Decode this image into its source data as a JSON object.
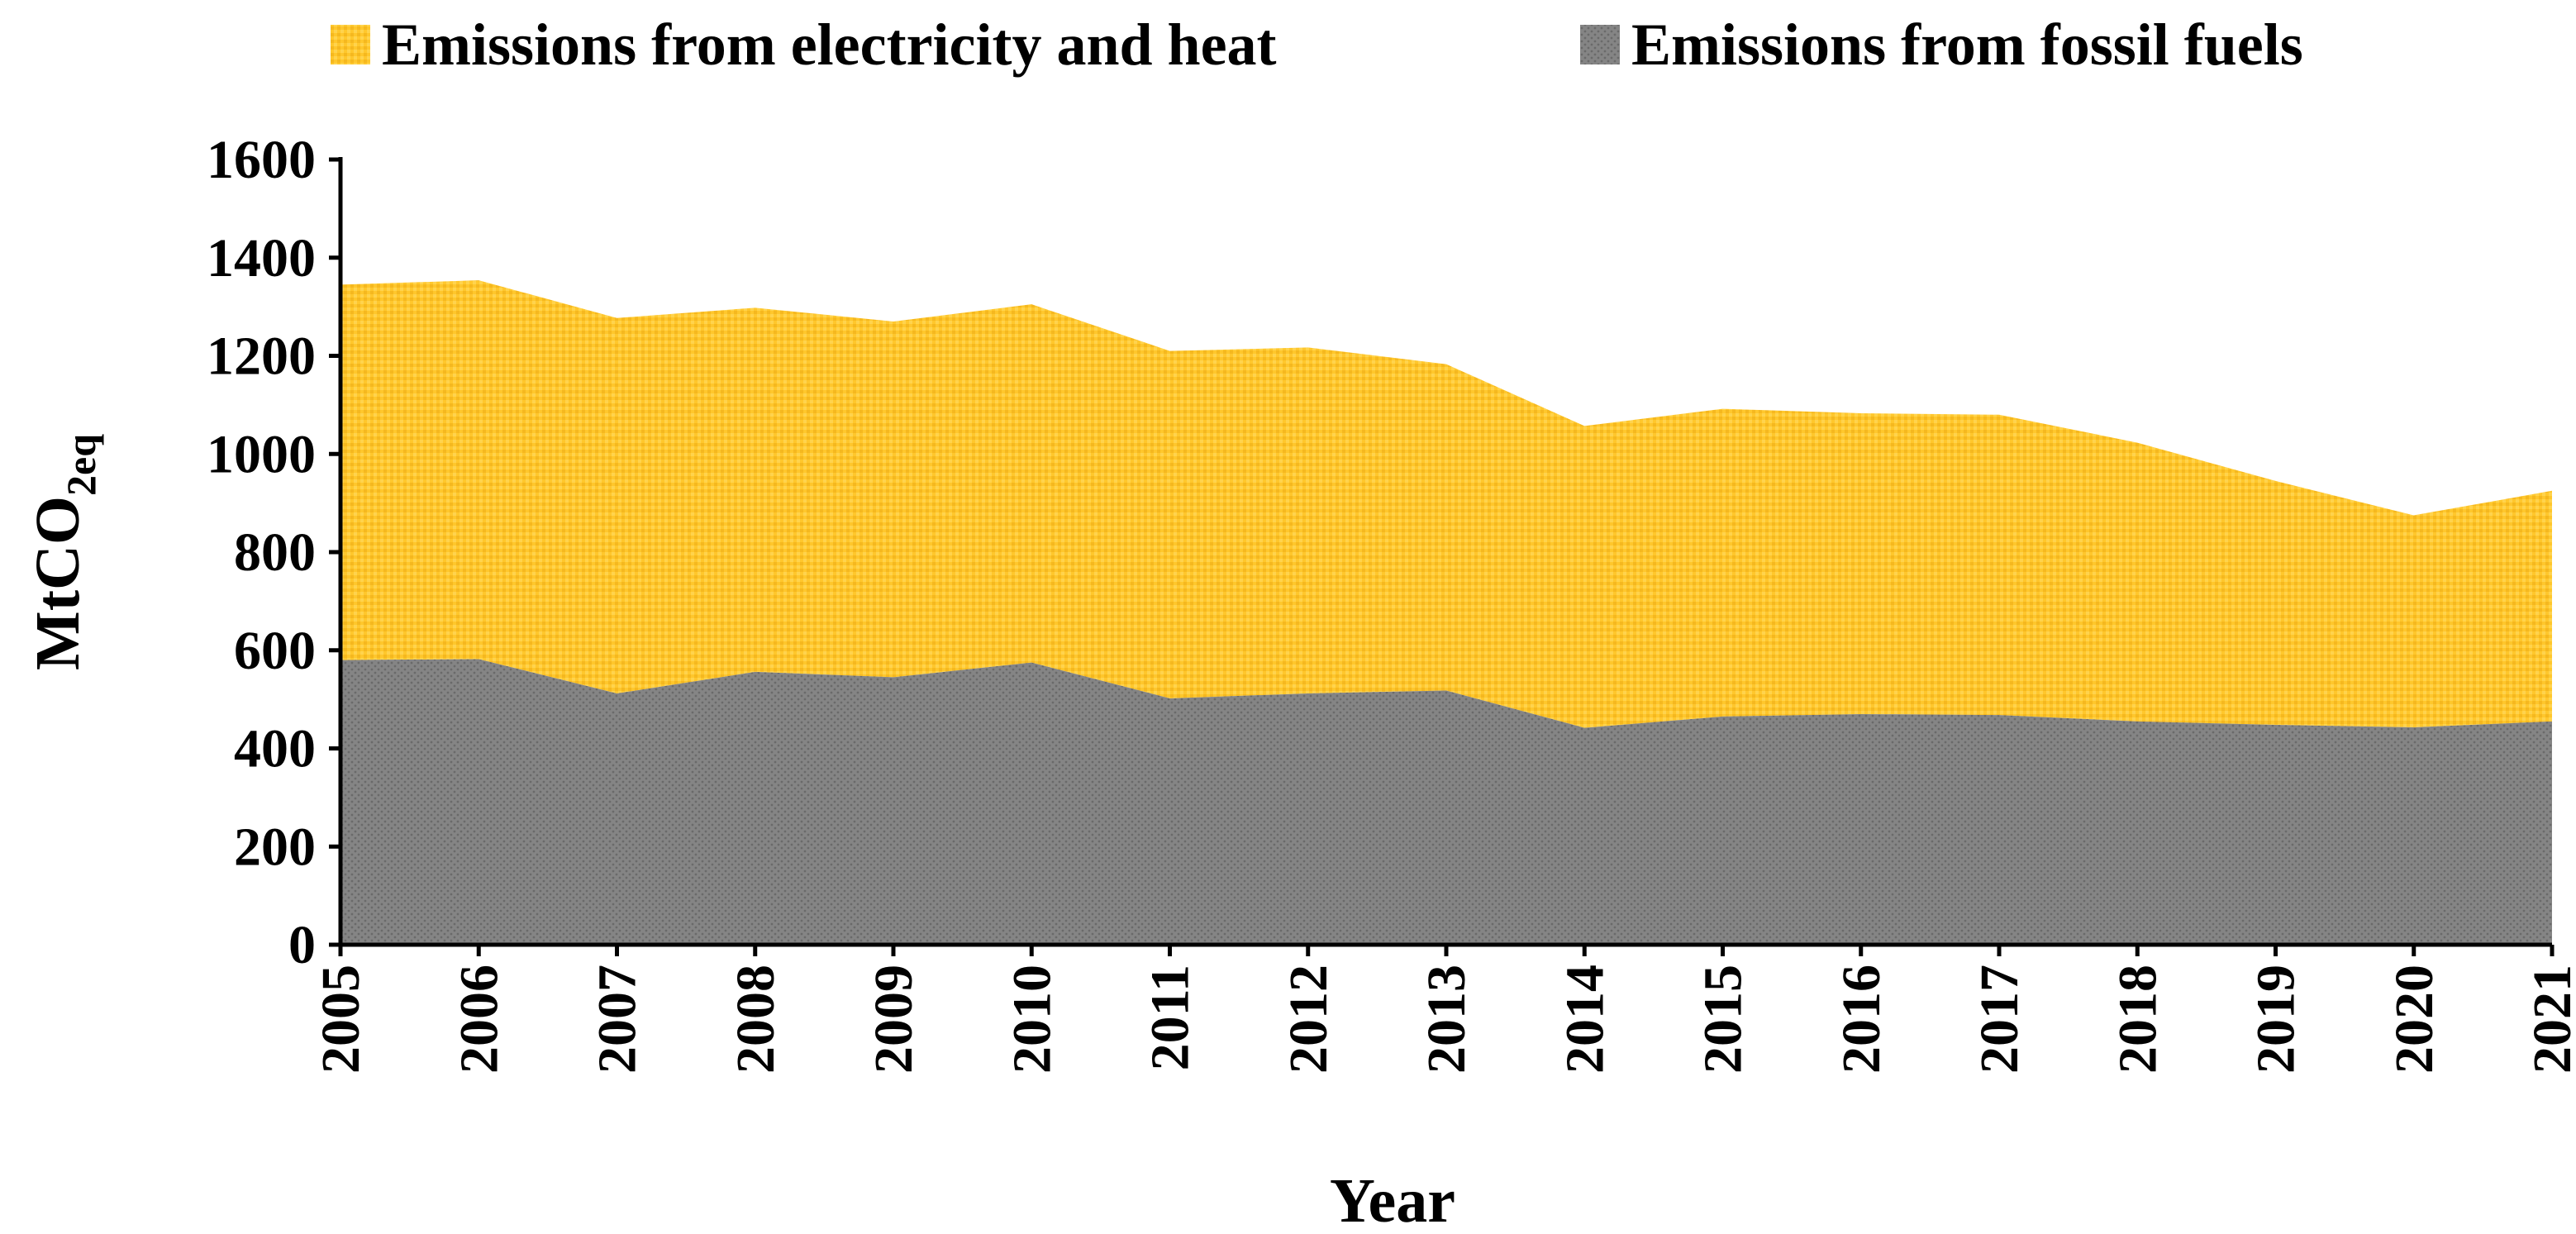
{
  "chart_data": {
    "type": "area",
    "stacked": true,
    "title": "",
    "xlabel": "Year",
    "ylabel": "MtCO",
    "ylabel_subscript": "2eq",
    "ylim": [
      0,
      1600
    ],
    "yticks": [
      0,
      200,
      400,
      600,
      800,
      1000,
      1200,
      1400,
      1600
    ],
    "legend_position": "top",
    "categories": [
      "2005",
      "2006",
      "2007",
      "2008",
      "2009",
      "2010",
      "2011",
      "2012",
      "2013",
      "2014",
      "2015",
      "2016",
      "2017",
      "2018",
      "2019",
      "2020",
      "2021"
    ],
    "series": [
      {
        "name": "Emissions from fossil fuels",
        "color": "#808080",
        "values": [
          580,
          582,
          512,
          556,
          545,
          575,
          502,
          512,
          518,
          442,
          465,
          470,
          468,
          455,
          448,
          443,
          455
        ]
      },
      {
        "name": "Emissions from electricity and heat",
        "color": "#FFC72C",
        "values": [
          765,
          772,
          765,
          742,
          725,
          730,
          708,
          705,
          665,
          615,
          627,
          613,
          612,
          568,
          497,
          432,
          470
        ]
      }
    ]
  }
}
